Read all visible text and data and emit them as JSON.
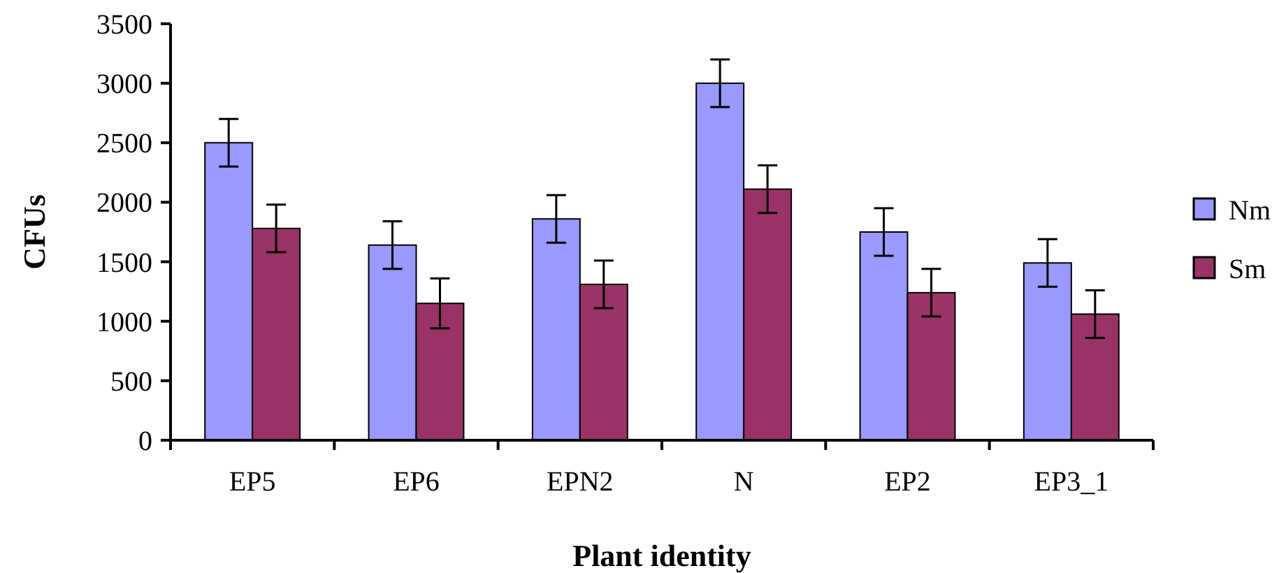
{
  "chart_data": {
    "type": "bar",
    "xlabel": "Plant identity",
    "ylabel": "CFUs",
    "categories": [
      "EP5",
      "EP6",
      "EPN2",
      "N",
      "EP2",
      "EP3_1"
    ],
    "series": [
      {
        "name": "Nm",
        "color": "#9999ff",
        "values": [
          2500,
          1640,
          1860,
          3000,
          1750,
          1490
        ],
        "errors": [
          200,
          200,
          200,
          200,
          200,
          200
        ]
      },
      {
        "name": "Sm",
        "color": "#993366",
        "values": [
          1780,
          1150,
          1310,
          2110,
          1240,
          1060
        ],
        "errors": [
          200,
          210,
          200,
          200,
          200,
          200
        ]
      }
    ],
    "ylim": [
      0,
      3500
    ],
    "yticks": [
      0,
      500,
      1000,
      1500,
      2000,
      2500,
      3000,
      3500
    ],
    "grid": false,
    "legend": "right"
  }
}
